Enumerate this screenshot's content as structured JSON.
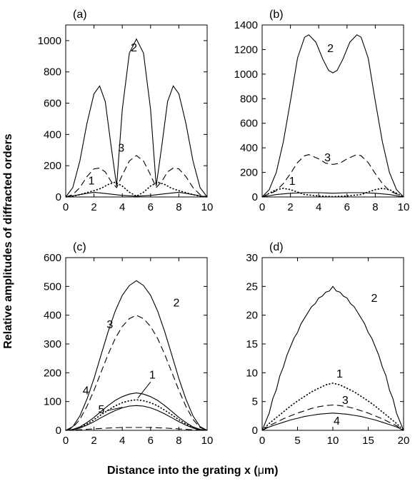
{
  "figure": {
    "ylabel": "Relative amplitudes of diffracted orders",
    "xlabel_main": "Distance into the grating  x (",
    "xlabel_mu": "μ",
    "xlabel_end": "m)"
  },
  "chart_data": [
    {
      "type": "line",
      "panel_label": "(a)",
      "xlim": [
        0,
        10
      ],
      "ylim": [
        0,
        1100
      ],
      "xticks": [
        0,
        2,
        4,
        6,
        8,
        10
      ],
      "yticks": [
        0,
        200,
        400,
        600,
        800,
        1000
      ],
      "series": [
        {
          "name": "2",
          "dash": "solid",
          "x": [
            0,
            0.5,
            1,
            1.5,
            2,
            2.4,
            2.8,
            3.2,
            3.6,
            4,
            4.5,
            5,
            5.5,
            6,
            6.4,
            6.8,
            7.2,
            7.6,
            8,
            8.5,
            9,
            9.5,
            10
          ],
          "y": [
            0,
            60,
            230,
            470,
            660,
            710,
            610,
            330,
            70,
            560,
            920,
            1010,
            920,
            560,
            70,
            330,
            610,
            710,
            660,
            470,
            230,
            60,
            0
          ]
        },
        {
          "name": "3",
          "dash": "long",
          "x": [
            0,
            0.5,
            1,
            1.5,
            2,
            2.4,
            2.8,
            3.2,
            3.6,
            4,
            4.5,
            5,
            5.5,
            6,
            6.4,
            6.8,
            7.2,
            7.6,
            8,
            8.5,
            9,
            9.5,
            10
          ],
          "y": [
            0,
            15,
            60,
            130,
            180,
            185,
            160,
            100,
            60,
            140,
            230,
            265,
            230,
            140,
            60,
            100,
            160,
            185,
            180,
            130,
            60,
            15,
            0
          ]
        },
        {
          "name": "1",
          "dash": "dotted",
          "x": [
            0,
            0.5,
            1,
            1.5,
            2,
            2.5,
            3,
            3.5,
            4,
            4.5,
            5,
            5.5,
            6,
            6.5,
            7,
            7.5,
            8,
            8.5,
            9,
            9.5,
            10
          ],
          "y": [
            0,
            5,
            15,
            28,
            40,
            55,
            80,
            95,
            70,
            30,
            5,
            30,
            70,
            95,
            80,
            55,
            40,
            28,
            15,
            5,
            0
          ]
        },
        {
          "name": "",
          "dash": "solid",
          "x": [
            0,
            1,
            2,
            3,
            4,
            5,
            6,
            7,
            8,
            9,
            10
          ],
          "y": [
            0,
            15,
            30,
            20,
            10,
            5,
            10,
            20,
            30,
            15,
            0
          ]
        }
      ],
      "annotations": [
        {
          "text": "2",
          "x": 4.6,
          "y": 930
        },
        {
          "text": "3",
          "x": 3.7,
          "y": 290
        },
        {
          "text": "1",
          "x": 1.6,
          "y": 80
        }
      ]
    },
    {
      "type": "line",
      "panel_label": "(b)",
      "xlim": [
        0,
        10
      ],
      "ylim": [
        0,
        1400
      ],
      "xticks": [
        0,
        2,
        4,
        6,
        8,
        10
      ],
      "yticks": [
        0,
        200,
        400,
        600,
        800,
        1000,
        1200,
        1400
      ],
      "series": [
        {
          "name": "2",
          "dash": "solid",
          "x": [
            0,
            0.5,
            1,
            1.5,
            2,
            2.5,
            3,
            3.3,
            3.8,
            4.3,
            4.7,
            5,
            5.3,
            5.7,
            6.2,
            6.7,
            7,
            7.5,
            8,
            8.5,
            9,
            9.5,
            10
          ],
          "y": [
            0,
            60,
            200,
            450,
            780,
            1130,
            1300,
            1320,
            1260,
            1120,
            1030,
            1010,
            1030,
            1120,
            1260,
            1320,
            1300,
            1130,
            780,
            450,
            200,
            60,
            0
          ]
        },
        {
          "name": "3",
          "dash": "long",
          "x": [
            0,
            1,
            1.5,
            2,
            2.5,
            3,
            3.3,
            4,
            4.5,
            5,
            5.5,
            6,
            6.7,
            7,
            7.5,
            8,
            8.5,
            9,
            10
          ],
          "y": [
            0,
            50,
            110,
            190,
            280,
            335,
            345,
            310,
            275,
            265,
            275,
            310,
            345,
            335,
            280,
            190,
            110,
            50,
            0
          ]
        },
        {
          "name": "1",
          "dash": "dotted",
          "x": [
            0,
            0.5,
            1,
            1.5,
            2,
            2.5,
            3,
            4,
            5,
            6,
            7,
            7.5,
            8,
            8.5,
            9,
            9.5,
            10
          ],
          "y": [
            0,
            30,
            60,
            70,
            60,
            40,
            20,
            8,
            3,
            8,
            20,
            40,
            60,
            70,
            60,
            30,
            0
          ]
        },
        {
          "name": "",
          "dash": "solid",
          "x": [
            0,
            1,
            2,
            3,
            4,
            5,
            6,
            7,
            8,
            9,
            10
          ],
          "y": [
            0,
            20,
            30,
            35,
            35,
            30,
            35,
            35,
            30,
            20,
            0
          ]
        }
      ],
      "annotations": [
        {
          "text": "2",
          "x": 4.6,
          "y": 1180
        },
        {
          "text": "3",
          "x": 4.4,
          "y": 290
        },
        {
          "text": "1",
          "x": 1.9,
          "y": 100
        }
      ]
    },
    {
      "type": "line",
      "panel_label": "(c)",
      "xlim": [
        0,
        10
      ],
      "ylim": [
        0,
        600
      ],
      "xticks": [
        0,
        2,
        4,
        6,
        8,
        10
      ],
      "yticks": [
        0,
        100,
        200,
        300,
        400,
        500,
        600
      ],
      "series": [
        {
          "name": "2",
          "dash": "solid",
          "x": [
            0,
            0.5,
            1,
            1.5,
            2,
            2.5,
            3,
            3.5,
            4,
            4.5,
            5,
            5.5,
            6,
            6.5,
            7,
            7.5,
            8,
            8.5,
            9,
            9.5,
            10
          ],
          "y": [
            0,
            13,
            50,
            108,
            180,
            262,
            343,
            414,
            469,
            503,
            520,
            503,
            469,
            414,
            343,
            262,
            180,
            108,
            50,
            13,
            0
          ]
        },
        {
          "name": "3",
          "dash": "long",
          "x": [
            0,
            0.5,
            1,
            1.5,
            2,
            2.5,
            3,
            3.5,
            4,
            4.5,
            5,
            5.5,
            6,
            6.5,
            7,
            7.5,
            8,
            8.5,
            9,
            9.5,
            10
          ],
          "y": [
            0,
            10,
            38,
            83,
            139,
            202,
            264,
            319,
            361,
            388,
            400,
            388,
            361,
            319,
            264,
            202,
            139,
            83,
            38,
            10,
            0
          ]
        },
        {
          "name": "4",
          "dash": "solid",
          "x": [
            0,
            0.5,
            1,
            1.5,
            2,
            2.5,
            3,
            3.5,
            4,
            4.5,
            5,
            5.5,
            6,
            6.5,
            7,
            7.5,
            8,
            8.5,
            9,
            9.5,
            10
          ],
          "y": [
            0,
            3,
            12,
            27,
            45,
            66,
            86,
            104,
            117,
            126,
            130,
            126,
            117,
            104,
            86,
            66,
            45,
            27,
            12,
            3,
            0
          ]
        },
        {
          "name": "1",
          "dash": "dotted",
          "x": [
            0,
            0.5,
            1,
            1.5,
            2,
            2.5,
            3,
            3.5,
            4,
            4.5,
            5,
            5.5,
            6,
            6.5,
            7,
            7.5,
            8,
            8.5,
            9,
            9.5,
            10
          ],
          "y": [
            0,
            3,
            10,
            22,
            37,
            54,
            70,
            85,
            96,
            103,
            106,
            103,
            96,
            85,
            70,
            54,
            37,
            22,
            10,
            3,
            0
          ]
        },
        {
          "name": "5",
          "dash": "solid",
          "x": [
            0,
            0.5,
            1,
            1.5,
            2,
            2.5,
            3,
            3.5,
            4,
            4.5,
            5,
            5.5,
            6,
            6.5,
            7,
            7.5,
            8,
            8.5,
            9,
            9.5,
            10
          ],
          "y": [
            0,
            2,
            8,
            18,
            30,
            44,
            57,
            69,
            78,
            84,
            86,
            84,
            78,
            69,
            57,
            44,
            30,
            18,
            8,
            2,
            0
          ]
        },
        {
          "name": "",
          "dash": "long",
          "x": [
            0,
            1,
            2,
            3,
            4,
            5,
            6,
            7,
            8,
            9,
            10
          ],
          "y": [
            0,
            2,
            5,
            8,
            10,
            10,
            10,
            8,
            5,
            2,
            0
          ]
        }
      ],
      "annotations": [
        {
          "text": "2",
          "x": 7.6,
          "y": 430
        },
        {
          "text": "3",
          "x": 2.9,
          "y": 355
        },
        {
          "text": "1",
          "x": 5.9,
          "y": 180
        },
        {
          "text": "4",
          "x": 1.2,
          "y": 125
        },
        {
          "text": "5",
          "x": 2.3,
          "y": 60
        }
      ]
    },
    {
      "type": "line",
      "panel_label": "(d)",
      "xlim": [
        0,
        20
      ],
      "ylim": [
        0,
        30
      ],
      "xticks": [
        0,
        5,
        10,
        15,
        20
      ],
      "yticks": [
        0,
        5,
        10,
        15,
        20,
        25,
        30
      ],
      "series": [
        {
          "name": "2",
          "dash": "solid",
          "x": [
            0,
            0.5,
            1,
            1.5,
            2,
            2.5,
            3,
            3.5,
            4,
            4.5,
            5,
            5.5,
            6,
            6.5,
            7,
            7.5,
            8,
            8.5,
            9,
            9.5,
            10,
            10.5,
            11,
            11.5,
            12,
            12.5,
            13,
            13.5,
            14,
            14.5,
            15,
            15.5,
            16,
            16.5,
            17,
            17.5,
            18,
            18.5,
            19,
            19.5,
            20
          ],
          "y": [
            0,
            1.5,
            3,
            5.5,
            7,
            9.5,
            11,
            13,
            14.5,
            16,
            17,
            18.5,
            19.5,
            20.5,
            21.5,
            22,
            23,
            23.3,
            24,
            24.2,
            25,
            24.2,
            24,
            23.3,
            23,
            22,
            21.5,
            20.5,
            19.5,
            18.5,
            17,
            16,
            14.5,
            13,
            11,
            9.5,
            7,
            5.5,
            3,
            1.5,
            0
          ]
        },
        {
          "name": "1",
          "dash": "dotted",
          "x": [
            0,
            1,
            2,
            3,
            4,
            5,
            6,
            7,
            8,
            9,
            10,
            11,
            12,
            13,
            14,
            15,
            16,
            17,
            18,
            19,
            20
          ],
          "y": [
            0,
            1.2,
            2.2,
            3.2,
            4.2,
            5.1,
            5.9,
            6.7,
            7.3,
            7.9,
            8.2,
            7.9,
            7.3,
            6.7,
            5.9,
            5.1,
            4.2,
            3.2,
            2.2,
            1.2,
            0
          ]
        },
        {
          "name": "3",
          "dash": "long",
          "x": [
            0,
            1,
            2,
            3,
            4,
            5,
            6,
            7,
            8,
            9,
            10,
            11,
            12,
            13,
            14,
            15,
            16,
            17,
            18,
            19,
            20
          ],
          "y": [
            0,
            0.8,
            1.4,
            2,
            2.5,
            3,
            3.4,
            3.8,
            4.1,
            4.3,
            4.4,
            4.3,
            4.1,
            3.8,
            3.4,
            3,
            2.5,
            2,
            1.4,
            0.8,
            0
          ]
        },
        {
          "name": "4",
          "dash": "solid",
          "x": [
            0,
            1,
            2,
            3,
            4,
            5,
            6,
            7,
            8,
            9,
            10,
            11,
            12,
            13,
            14,
            15,
            16,
            17,
            18,
            19,
            20
          ],
          "y": [
            0,
            0.6,
            1,
            1.4,
            1.8,
            2.1,
            2.4,
            2.6,
            2.8,
            2.9,
            3,
            2.9,
            2.8,
            2.6,
            2.4,
            2.1,
            1.8,
            1.4,
            1,
            0.6,
            0
          ]
        }
      ],
      "annotations": [
        {
          "text": "2",
          "x": 15.4,
          "y": 22.3
        },
        {
          "text": "1",
          "x": 10.5,
          "y": 9.2
        },
        {
          "text": "3",
          "x": 11.3,
          "y": 4.6
        },
        {
          "text": "4",
          "x": 10.1,
          "y": 1.0
        }
      ]
    }
  ]
}
